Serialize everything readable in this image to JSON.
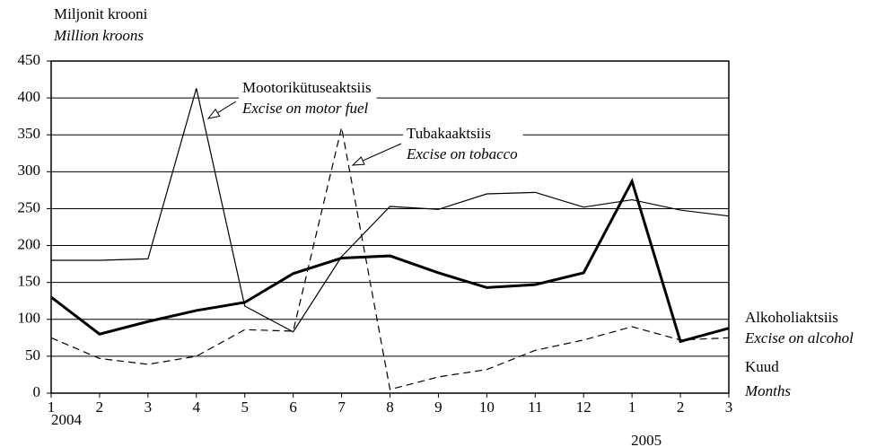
{
  "chart_data": {
    "type": "line",
    "y_label": "Miljonit krooni",
    "y_label_en": "Million kroons",
    "x_label": "Kuud",
    "x_label_en": "Months",
    "categories": [
      "1",
      "2",
      "3",
      "4",
      "5",
      "6",
      "7",
      "8",
      "9",
      "10",
      "11",
      "12",
      "1",
      "2",
      "3"
    ],
    "years": [
      {
        "index": 0,
        "label": "2004"
      },
      {
        "index": 12,
        "label": "2005"
      }
    ],
    "ylim": [
      0,
      450
    ],
    "yticks": [
      0,
      50,
      100,
      150,
      200,
      250,
      300,
      350,
      400,
      450
    ],
    "grid": true,
    "series": [
      {
        "name": "Mootorikütuseaktsiis",
        "name_en": "Excise on motor fuel",
        "color": "#000000",
        "width": 1.2,
        "dash": "none",
        "values": [
          180,
          180,
          182,
          413,
          118,
          83,
          185,
          253,
          249,
          270,
          272,
          252,
          262,
          248,
          240
        ]
      },
      {
        "name": "Tubakaaktsiis",
        "name_en": "Excise on tobacco",
        "color": "#000000",
        "width": 1.2,
        "dash": "8 5",
        "values": [
          75,
          47,
          39,
          50,
          86,
          84,
          360,
          5,
          22,
          32,
          58,
          72,
          90,
          72,
          75
        ]
      },
      {
        "name": "Alkoholiaktsiis",
        "name_en": "Excise on alcohol",
        "color": "#000000",
        "width": 3,
        "dash": "none",
        "values": [
          130,
          80,
          97,
          112,
          123,
          162,
          183,
          186,
          163,
          143,
          147,
          163,
          287,
          70,
          88
        ]
      }
    ]
  }
}
